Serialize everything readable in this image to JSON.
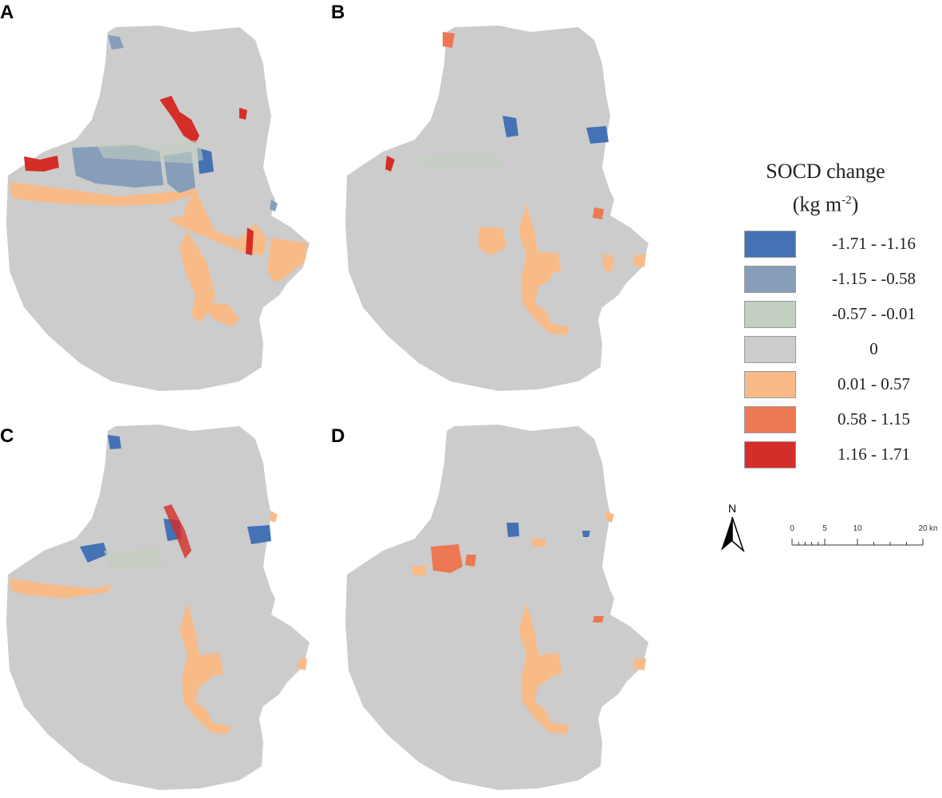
{
  "panels": [
    {
      "label": "A"
    },
    {
      "label": "B"
    },
    {
      "label": "C"
    },
    {
      "label": "D"
    }
  ],
  "legend": {
    "title_line1": "SOCD change",
    "title_line2_base": "(kg m",
    "title_line2_sup": "-2",
    "title_line2_end": ")",
    "items": [
      {
        "label": "-1.71 - -1.16",
        "color": "#4472b4"
      },
      {
        "label": "-1.15 - -0.58",
        "color": "#869eb9"
      },
      {
        "label": "-0.57 - -0.01",
        "color": "#c3cfc1"
      },
      {
        "label": "0",
        "color": "#cccccc"
      },
      {
        "label": "0.01 - 0.57",
        "color": "#f8bb88"
      },
      {
        "label": "0.58 - 1.15",
        "color": "#ed7854"
      },
      {
        "label": "1.16 - 1.71",
        "color": "#d52d28"
      }
    ]
  },
  "north_arrow": {
    "label": "N"
  },
  "scale_bar": {
    "ticks": [
      "0",
      "5",
      "10",
      "20"
    ],
    "unit": "km"
  },
  "colors": {
    "base": "#cccccc",
    "background": "#ffffff"
  }
}
